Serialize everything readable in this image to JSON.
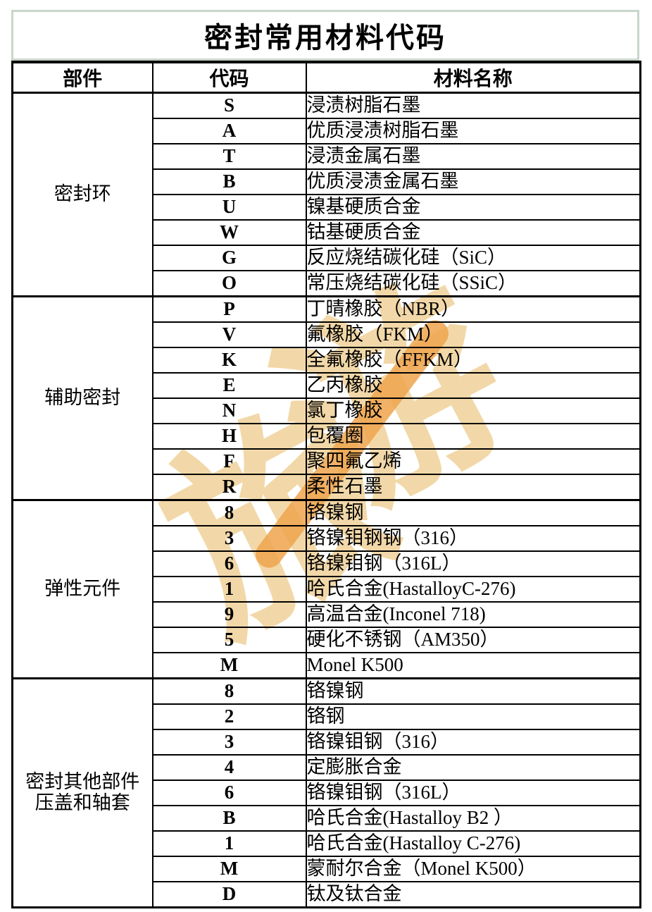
{
  "title": "密封常用材料代码",
  "table": {
    "headers": [
      "部件",
      "代码",
      "材料名称"
    ],
    "groups": [
      {
        "component": "密封环",
        "rows": [
          [
            "S",
            "浸渍树脂石墨"
          ],
          [
            "A",
            "优质浸渍树脂石墨"
          ],
          [
            "T",
            "浸渍金属石墨"
          ],
          [
            "B",
            "优质浸渍金属石墨"
          ],
          [
            "U",
            "镍基硬质合金"
          ],
          [
            "W",
            "钴基硬质合金"
          ],
          [
            "G",
            "反应烧结碳化硅（SiC）"
          ],
          [
            "O",
            "常压烧结碳化硅（SSiC）"
          ]
        ]
      },
      {
        "component": "辅助密封",
        "rows": [
          [
            "P",
            "丁晴橡胶（NBR）"
          ],
          [
            "V",
            "氟橡胶（FKM）"
          ],
          [
            "K",
            "全氟橡胶（FFKM）"
          ],
          [
            "E",
            "乙丙橡胶"
          ],
          [
            "N",
            "氯丁橡胶"
          ],
          [
            "H",
            "包覆圈"
          ],
          [
            "F",
            "聚四氟乙烯"
          ],
          [
            "R",
            "柔性石墨"
          ]
        ]
      },
      {
        "component": "弹性元件",
        "rows": [
          [
            "8",
            "铬镍钢"
          ],
          [
            "3",
            "铬镍钼钢钢（316）"
          ],
          [
            "6",
            "铬镍钼钢（316L）"
          ],
          [
            "1",
            "哈氏合金(HastalloyC-276)"
          ],
          [
            "9",
            "高温合金(Inconel 718)"
          ],
          [
            "5",
            "硬化不锈钢（AM350）"
          ],
          [
            "M",
            "Monel K500"
          ]
        ]
      },
      {
        "component": "密封其他部件\n压盖和轴套",
        "rows": [
          [
            "8",
            "铬镍钢"
          ],
          [
            "2",
            "铬钢"
          ],
          [
            "3",
            "铬镍钼钢（316）"
          ],
          [
            "4",
            "定膨胀合金"
          ],
          [
            "6",
            "铬镍钼钢（316L）"
          ],
          [
            "B",
            "哈氏合金(Hastalloy B2 ）"
          ],
          [
            "1",
            "哈氏合金(Hastalloy C-276)"
          ],
          [
            "M",
            "蒙耐尔合金（Monel K500）"
          ],
          [
            "D",
            "钛及钛合金"
          ]
        ]
      }
    ]
  },
  "watermark": {
    "char_upper": "游",
    "char_lower": "旅",
    "tan_color": "#f2d8a8",
    "accent_color": "#eea44e"
  },
  "colors": {
    "title_border_green": "#c8d6ca",
    "table_border": "#000000",
    "text": "#000000",
    "background": "#ffffff"
  }
}
